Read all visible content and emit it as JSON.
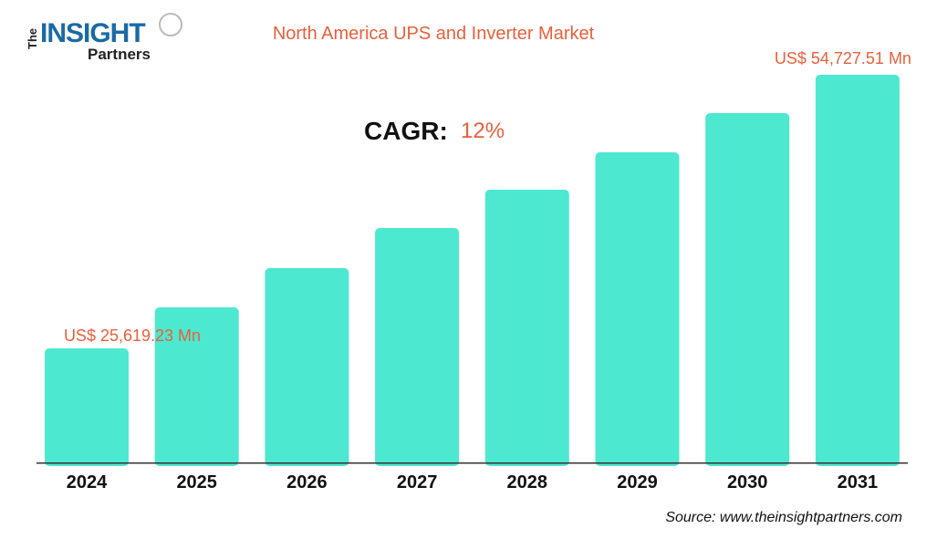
{
  "logo": {
    "the": "The",
    "insight": "INSIGHT",
    "partners": "Partners"
  },
  "source": "Source: www.theinsightpartners.com",
  "chart_data": {
    "type": "bar",
    "title": "North America UPS and Inverter Market",
    "xlabel": "",
    "ylabel": "",
    "categories": [
      "2024",
      "2025",
      "2026",
      "2027",
      "2028",
      "2029",
      "2030",
      "2031"
    ],
    "values": [
      25619.23,
      29985,
      34158,
      38427,
      42502,
      46481,
      50653,
      54727.51
    ],
    "unit": "US$ Mn",
    "cagr_label": "CAGR:",
    "cagr_value": "12%",
    "annotations": {
      "first": "US$ 25,619.23 Mn",
      "last": "US$ 54,727.51 Mn"
    },
    "bar_color": "#4de8d0",
    "annotation_color": "#e8603c",
    "grid": false,
    "legend": "none"
  }
}
